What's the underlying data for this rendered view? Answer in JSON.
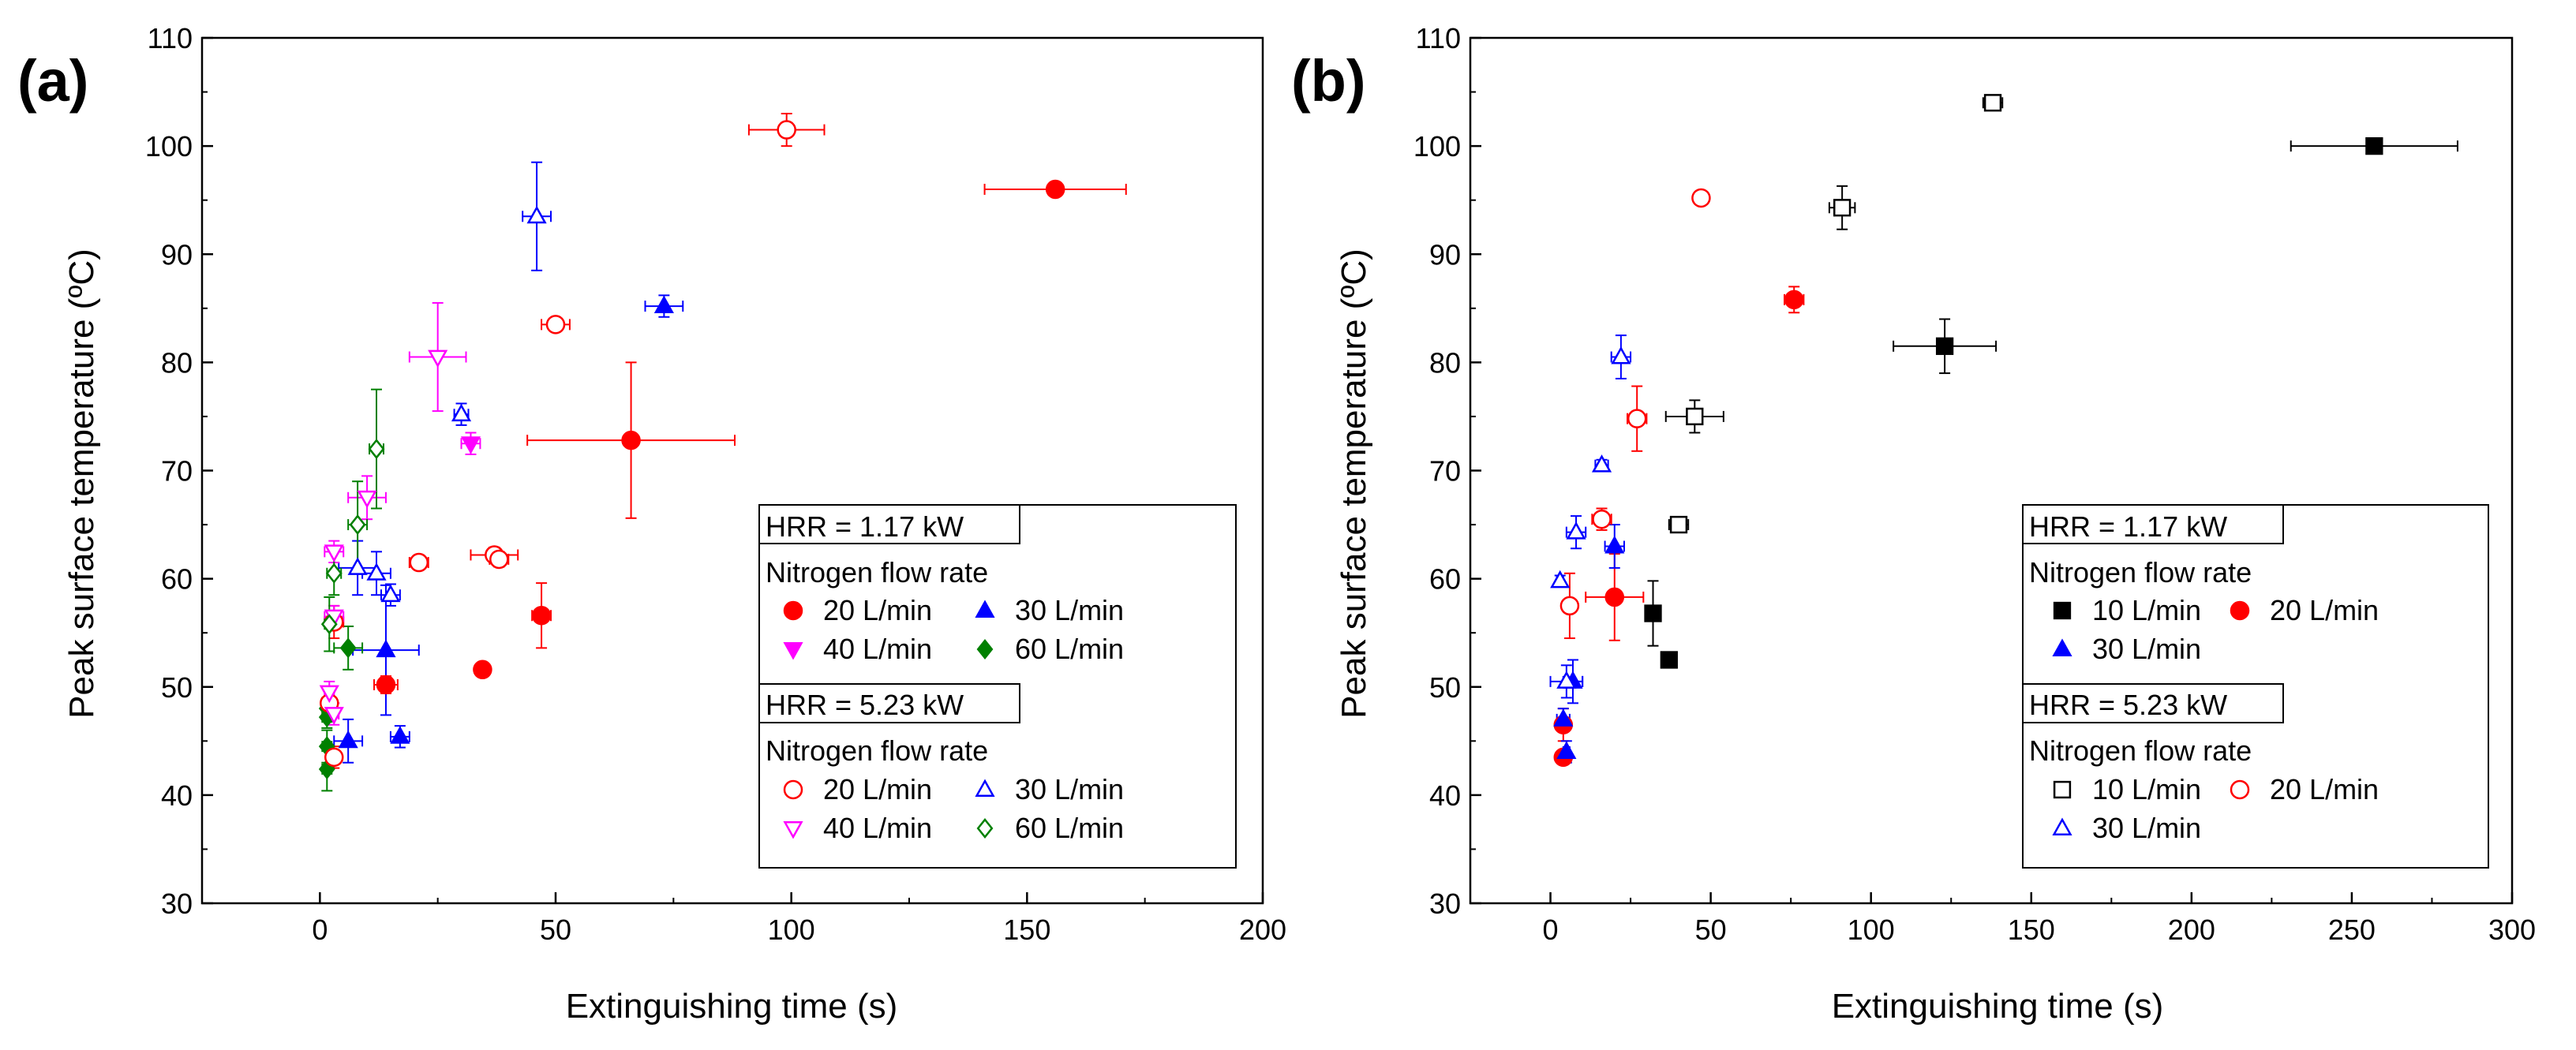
{
  "chart_data": [
    {
      "type": "scatter",
      "panel_label": "(a)",
      "xlabel": "Extinguishing time (s)",
      "ylabel": "Peak surface temperature (ºC)",
      "xlim": [
        -25,
        200
      ],
      "ylim": [
        30,
        110
      ],
      "xticks": [
        0,
        50,
        100,
        150,
        200
      ],
      "yticks": [
        30,
        40,
        50,
        60,
        70,
        80,
        90,
        100,
        110
      ],
      "grid": false,
      "legend_placement": "bottom-right",
      "legend": {
        "group1_title": "HRR = 1.17 kW",
        "group1_subtitle": "Nitrogen flow rate",
        "group2_title": "HRR = 5.23 kW",
        "group2_subtitle": "Nitrogen flow rate"
      },
      "series": [
        {
          "name": "20 L/min",
          "group": "HRR = 1.17 kW",
          "marker": "circle",
          "filled": true,
          "color": "#ff0000",
          "points": [
            [
              156,
              96,
              15,
              0.5
            ],
            [
              66,
              72.8,
              22,
              7.2
            ],
            [
              47,
              56.6,
              2,
              3
            ],
            [
              34.5,
              51.6,
              1.5,
              0.5
            ],
            [
              14,
              50.2,
              2.5,
              0.8
            ]
          ]
        },
        {
          "name": "30 L/min",
          "group": "HRR = 1.17 kW",
          "marker": "triangle-up",
          "filled": true,
          "color": "#0000ff",
          "points": [
            [
              73,
              85.2,
              4,
              1
            ],
            [
              14,
              53.4,
              7,
              6
            ],
            [
              6,
              45,
              3,
              2
            ],
            [
              17,
              45.4,
              2,
              1
            ]
          ]
        },
        {
          "name": "40 L/min",
          "group": "HRR = 1.17 kW",
          "marker": "triangle-down",
          "filled": true,
          "color": "#ff00ff",
          "points": [
            [
              32,
              72.5,
              2,
              1
            ]
          ]
        },
        {
          "name": "60 L/min",
          "group": "HRR = 1.17 kW",
          "marker": "diamond",
          "filled": true,
          "color": "#008000",
          "points": [
            [
              6,
              53.6,
              3,
              2
            ],
            [
              1.5,
              48,
              1,
              1
            ],
            [
              1.5,
              47.2,
              1,
              1
            ],
            [
              1.5,
              44.5,
              1,
              1.5
            ],
            [
              1.5,
              42.4,
              1,
              2
            ]
          ]
        },
        {
          "name": "20 L/min",
          "group": "HRR = 5.23 kW",
          "marker": "circle",
          "filled": false,
          "color": "#ff0000",
          "points": [
            [
              99,
              101.5,
              8,
              1.5
            ],
            [
              50,
              83.5,
              3,
              0.6
            ],
            [
              37,
              62.2,
              5,
              0.7
            ],
            [
              38,
              61.8,
              2,
              0.7
            ],
            [
              21,
              61.5,
              2,
              0.5
            ],
            [
              3,
              56,
              2,
              1.5
            ],
            [
              2,
              48.5,
              1,
              1.2
            ],
            [
              3,
              43.5,
              1,
              1
            ]
          ]
        },
        {
          "name": "30 L/min",
          "group": "HRR = 5.23 kW",
          "marker": "triangle-up",
          "filled": false,
          "color": "#0000ff",
          "points": [
            [
              46,
              93.5,
              3,
              5
            ],
            [
              30,
              75.2,
              1.5,
              1
            ],
            [
              12,
              60.5,
              3,
              2
            ],
            [
              15,
              58.5,
              2,
              1
            ],
            [
              8,
              61,
              4,
              2.5
            ]
          ]
        },
        {
          "name": "40 L/min",
          "group": "HRR = 5.23 kW",
          "marker": "triangle-down",
          "filled": false,
          "color": "#ff00ff",
          "points": [
            [
              25,
              80.5,
              6,
              5
            ],
            [
              10,
              67.5,
              4,
              2
            ],
            [
              3,
              62.5,
              2,
              1
            ],
            [
              3,
              56.5,
              2,
              1
            ],
            [
              2,
              49.5,
              1,
              1
            ],
            [
              3,
              47.5,
              1,
              1
            ]
          ]
        },
        {
          "name": "60 L/min",
          "group": "HRR = 5.23 kW",
          "marker": "diamond",
          "filled": false,
          "color": "#008000",
          "points": [
            [
              12,
              72,
              1.5,
              5.5
            ],
            [
              8,
              65,
              2,
              4
            ],
            [
              3,
              60.5,
              1.5,
              2
            ],
            [
              2,
              55.8,
              1,
              2.5
            ]
          ]
        }
      ]
    },
    {
      "type": "scatter",
      "panel_label": "(b)",
      "xlabel": "Extinguishing time (s)",
      "ylabel": "Peak surface temperature (ºC)",
      "xlim": [
        -25,
        300
      ],
      "ylim": [
        30,
        110
      ],
      "xticks": [
        0,
        50,
        100,
        150,
        200,
        250,
        300
      ],
      "yticks": [
        30,
        40,
        50,
        60,
        70,
        80,
        90,
        100,
        110
      ],
      "grid": false,
      "legend_placement": "bottom-right",
      "legend": {
        "group1_title": "HRR = 1.17 kW",
        "group1_subtitle": "Nitrogen flow rate",
        "group2_title": "HRR = 5.23 kW",
        "group2_subtitle": "Nitrogen flow rate"
      },
      "series": [
        {
          "name": "10 L/min",
          "group": "HRR = 1.17 kW",
          "marker": "square",
          "filled": true,
          "color": "#000000",
          "points": [
            [
              257,
              100,
              26,
              0.5
            ],
            [
              123,
              81.5,
              16,
              2.5
            ],
            [
              32,
              56.8,
              1.5,
              3
            ],
            [
              37,
              52.5,
              1,
              0.5
            ]
          ]
        },
        {
          "name": "20 L/min",
          "group": "HRR = 1.17 kW",
          "marker": "circle",
          "filled": true,
          "color": "#ff0000",
          "points": [
            [
              76,
              85.8,
              3,
              1.2
            ],
            [
              20,
              58.3,
              9,
              4
            ],
            [
              4,
              46.5,
              2,
              1.5
            ],
            [
              4,
              43.5,
              1,
              0.5
            ]
          ]
        },
        {
          "name": "30 L/min",
          "group": "HRR = 1.17 kW",
          "marker": "triangle-up",
          "filled": true,
          "color": "#0000ff",
          "points": [
            [
              20,
              63,
              3,
              2
            ],
            [
              7,
              50.5,
              3,
              2
            ],
            [
              4,
              47,
              2,
              1
            ],
            [
              5,
              44,
              1,
              1
            ]
          ]
        },
        {
          "name": "10 L/min",
          "group": "HRR = 5.23 kW",
          "marker": "square",
          "filled": false,
          "color": "#000000",
          "points": [
            [
              138,
              104,
              3,
              0.7
            ],
            [
              91,
              94.3,
              4,
              2
            ],
            [
              45,
              75,
              9,
              1.5
            ],
            [
              40,
              65,
              3,
              0.5
            ]
          ]
        },
        {
          "name": "20 L/min",
          "group": "HRR = 5.23 kW",
          "marker": "circle",
          "filled": false,
          "color": "#ff0000",
          "points": [
            [
              47,
              95.2,
              1.5,
              0.6
            ],
            [
              27,
              74.8,
              3,
              3
            ],
            [
              16,
              65.5,
              3,
              1
            ],
            [
              6,
              57.5,
              2,
              3
            ]
          ]
        },
        {
          "name": "30 L/min",
          "group": "HRR = 5.23 kW",
          "marker": "triangle-up",
          "filled": false,
          "color": "#0000ff",
          "points": [
            [
              22,
              80.5,
              3,
              2
            ],
            [
              8,
              64.3,
              3,
              1.5
            ],
            [
              3,
              59.8,
              1,
              0.5
            ],
            [
              5,
              50.5,
              5,
              1.5
            ],
            [
              16,
              70.5,
              2,
              0.5
            ]
          ]
        }
      ]
    }
  ]
}
